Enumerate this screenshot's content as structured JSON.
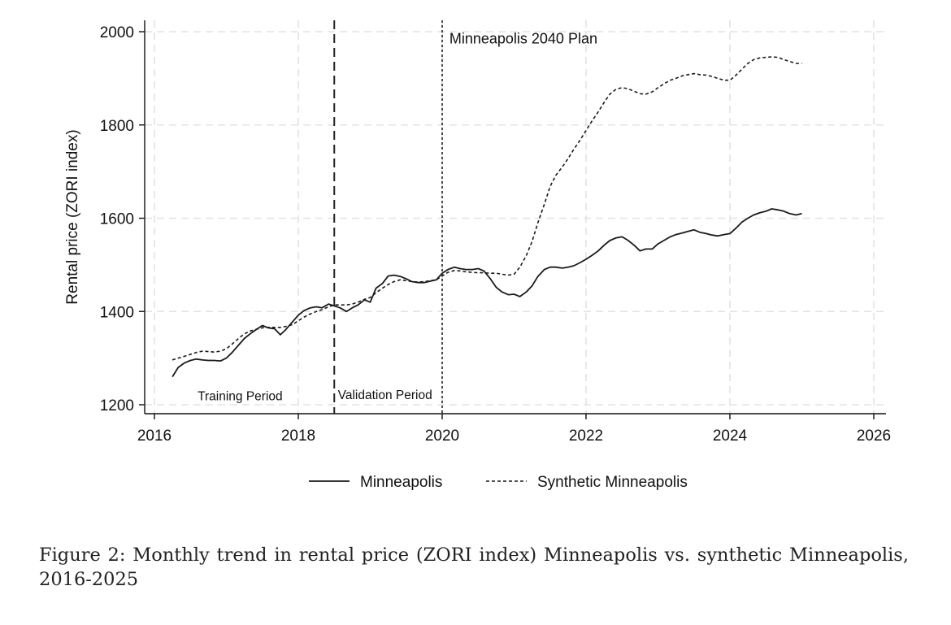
{
  "chart_data": {
    "type": "line",
    "title": "",
    "xlabel": "",
    "ylabel": "Rental price (ZORI index)",
    "xlim": [
      2016,
      2026
    ],
    "ylim": [
      1200,
      2000
    ],
    "x_ticks": [
      2016,
      2018,
      2020,
      2022,
      2024,
      2026
    ],
    "y_ticks": [
      1200,
      1400,
      1600,
      1800,
      2000
    ],
    "grid": true,
    "legend_position": "bottom",
    "series": [
      {
        "name": "Minneapolis",
        "style": "solid",
        "x": [
          2016.25,
          2016.33,
          2016.42,
          2016.5,
          2016.58,
          2016.67,
          2016.75,
          2016.83,
          2016.92,
          2017.0,
          2017.08,
          2017.17,
          2017.25,
          2017.33,
          2017.42,
          2017.5,
          2017.58,
          2017.67,
          2017.75,
          2017.83,
          2017.92,
          2018.0,
          2018.08,
          2018.17,
          2018.25,
          2018.33,
          2018.42,
          2018.5,
          2018.58,
          2018.67,
          2018.75,
          2018.83,
          2018.92,
          2019.0,
          2019.08,
          2019.17,
          2019.25,
          2019.33,
          2019.42,
          2019.5,
          2019.58,
          2019.67,
          2019.75,
          2019.83,
          2019.92,
          2020.0,
          2020.08,
          2020.17,
          2020.25,
          2020.33,
          2020.42,
          2020.5,
          2020.58,
          2020.67,
          2020.75,
          2020.83,
          2020.92,
          2021.0,
          2021.08,
          2021.17,
          2021.25,
          2021.33,
          2021.42,
          2021.5,
          2021.58,
          2021.67,
          2021.75,
          2021.83,
          2021.92,
          2022.0,
          2022.08,
          2022.17,
          2022.25,
          2022.33,
          2022.42,
          2022.5,
          2022.58,
          2022.67,
          2022.75,
          2022.83,
          2022.92,
          2023.0,
          2023.08,
          2023.17,
          2023.25,
          2023.33,
          2023.42,
          2023.5,
          2023.58,
          2023.67,
          2023.75,
          2023.83,
          2023.92,
          2024.0,
          2024.08,
          2024.17,
          2024.25,
          2024.33,
          2024.42,
          2024.5,
          2024.58,
          2024.67,
          2024.75,
          2024.83,
          2024.92,
          2025.0
        ],
        "y": [
          1260,
          1280,
          1290,
          1295,
          1298,
          1296,
          1295,
          1295,
          1294,
          1300,
          1312,
          1328,
          1342,
          1352,
          1362,
          1370,
          1365,
          1363,
          1350,
          1362,
          1378,
          1392,
          1402,
          1408,
          1410,
          1408,
          1416,
          1412,
          1408,
          1400,
          1408,
          1414,
          1425,
          1420,
          1450,
          1460,
          1476,
          1478,
          1475,
          1470,
          1464,
          1462,
          1462,
          1465,
          1468,
          1482,
          1490,
          1495,
          1492,
          1490,
          1490,
          1492,
          1487,
          1470,
          1452,
          1442,
          1436,
          1437,
          1432,
          1442,
          1455,
          1475,
          1490,
          1495,
          1495,
          1493,
          1495,
          1498,
          1505,
          1512,
          1520,
          1530,
          1542,
          1552,
          1558,
          1560,
          1553,
          1542,
          1530,
          1534,
          1534,
          1545,
          1552,
          1560,
          1565,
          1568,
          1572,
          1575,
          1570,
          1567,
          1564,
          1562,
          1565,
          1567,
          1578,
          1592,
          1600,
          1607,
          1612,
          1615,
          1620,
          1618,
          1615,
          1610,
          1607,
          1610
        ]
      },
      {
        "name": "Synthetic Minneapolis",
        "style": "dashed",
        "x": [
          2016.25,
          2016.33,
          2016.42,
          2016.5,
          2016.58,
          2016.67,
          2016.75,
          2016.83,
          2016.92,
          2017.0,
          2017.08,
          2017.17,
          2017.25,
          2017.33,
          2017.42,
          2017.5,
          2017.58,
          2017.67,
          2017.75,
          2017.83,
          2017.92,
          2018.0,
          2018.08,
          2018.17,
          2018.25,
          2018.33,
          2018.42,
          2018.5,
          2018.58,
          2018.67,
          2018.75,
          2018.83,
          2018.92,
          2019.0,
          2019.08,
          2019.17,
          2019.25,
          2019.33,
          2019.42,
          2019.5,
          2019.58,
          2019.67,
          2019.75,
          2019.83,
          2019.92,
          2020.0,
          2020.08,
          2020.17,
          2020.25,
          2020.33,
          2020.42,
          2020.5,
          2020.58,
          2020.67,
          2020.75,
          2020.83,
          2020.92,
          2021.0,
          2021.08,
          2021.17,
          2021.25,
          2021.33,
          2021.42,
          2021.5,
          2021.58,
          2021.67,
          2021.75,
          2021.83,
          2021.92,
          2022.0,
          2022.08,
          2022.17,
          2022.25,
          2022.33,
          2022.42,
          2022.5,
          2022.58,
          2022.67,
          2022.75,
          2022.83,
          2022.92,
          2023.0,
          2023.08,
          2023.17,
          2023.25,
          2023.33,
          2023.42,
          2023.5,
          2023.58,
          2023.67,
          2023.75,
          2023.83,
          2023.92,
          2024.0,
          2024.08,
          2024.17,
          2024.25,
          2024.33,
          2024.42,
          2024.5,
          2024.58,
          2024.67,
          2024.75,
          2024.83,
          2024.92,
          2025.0
        ],
        "y": [
          1296,
          1300,
          1304,
          1308,
          1312,
          1315,
          1314,
          1313,
          1315,
          1320,
          1330,
          1342,
          1352,
          1358,
          1362,
          1365,
          1366,
          1366,
          1366,
          1368,
          1372,
          1380,
          1388,
          1395,
          1400,
          1404,
          1410,
          1414,
          1414,
          1414,
          1416,
          1420,
          1426,
          1430,
          1440,
          1450,
          1458,
          1464,
          1468,
          1466,
          1464,
          1463,
          1464,
          1466,
          1468,
          1476,
          1484,
          1488,
          1487,
          1485,
          1484,
          1483,
          1483,
          1482,
          1482,
          1480,
          1478,
          1480,
          1495,
          1520,
          1550,
          1590,
          1630,
          1668,
          1692,
          1710,
          1728,
          1748,
          1768,
          1788,
          1808,
          1828,
          1848,
          1866,
          1877,
          1880,
          1878,
          1872,
          1867,
          1866,
          1871,
          1880,
          1888,
          1896,
          1900,
          1905,
          1908,
          1910,
          1908,
          1907,
          1904,
          1900,
          1896,
          1896,
          1906,
          1920,
          1932,
          1940,
          1944,
          1945,
          1946,
          1945,
          1940,
          1936,
          1932,
          1932
        ]
      }
    ],
    "vlines": [
      {
        "x": 2018.5,
        "style": "dashed"
      },
      {
        "x": 2020.0,
        "style": "dotted"
      }
    ],
    "annotations": [
      {
        "text": "Minneapolis 2040 Plan",
        "x": 2020.1,
        "y": 1975
      },
      {
        "text": "Training Period",
        "x": 2016.6,
        "y": 1210
      },
      {
        "text": "Validation Period",
        "x": 2018.55,
        "y": 1212
      }
    ]
  },
  "caption": "Figure 2: Monthly trend in rental price (ZORI index) Minneapolis vs. synthetic Minneapolis, 2016-2025"
}
